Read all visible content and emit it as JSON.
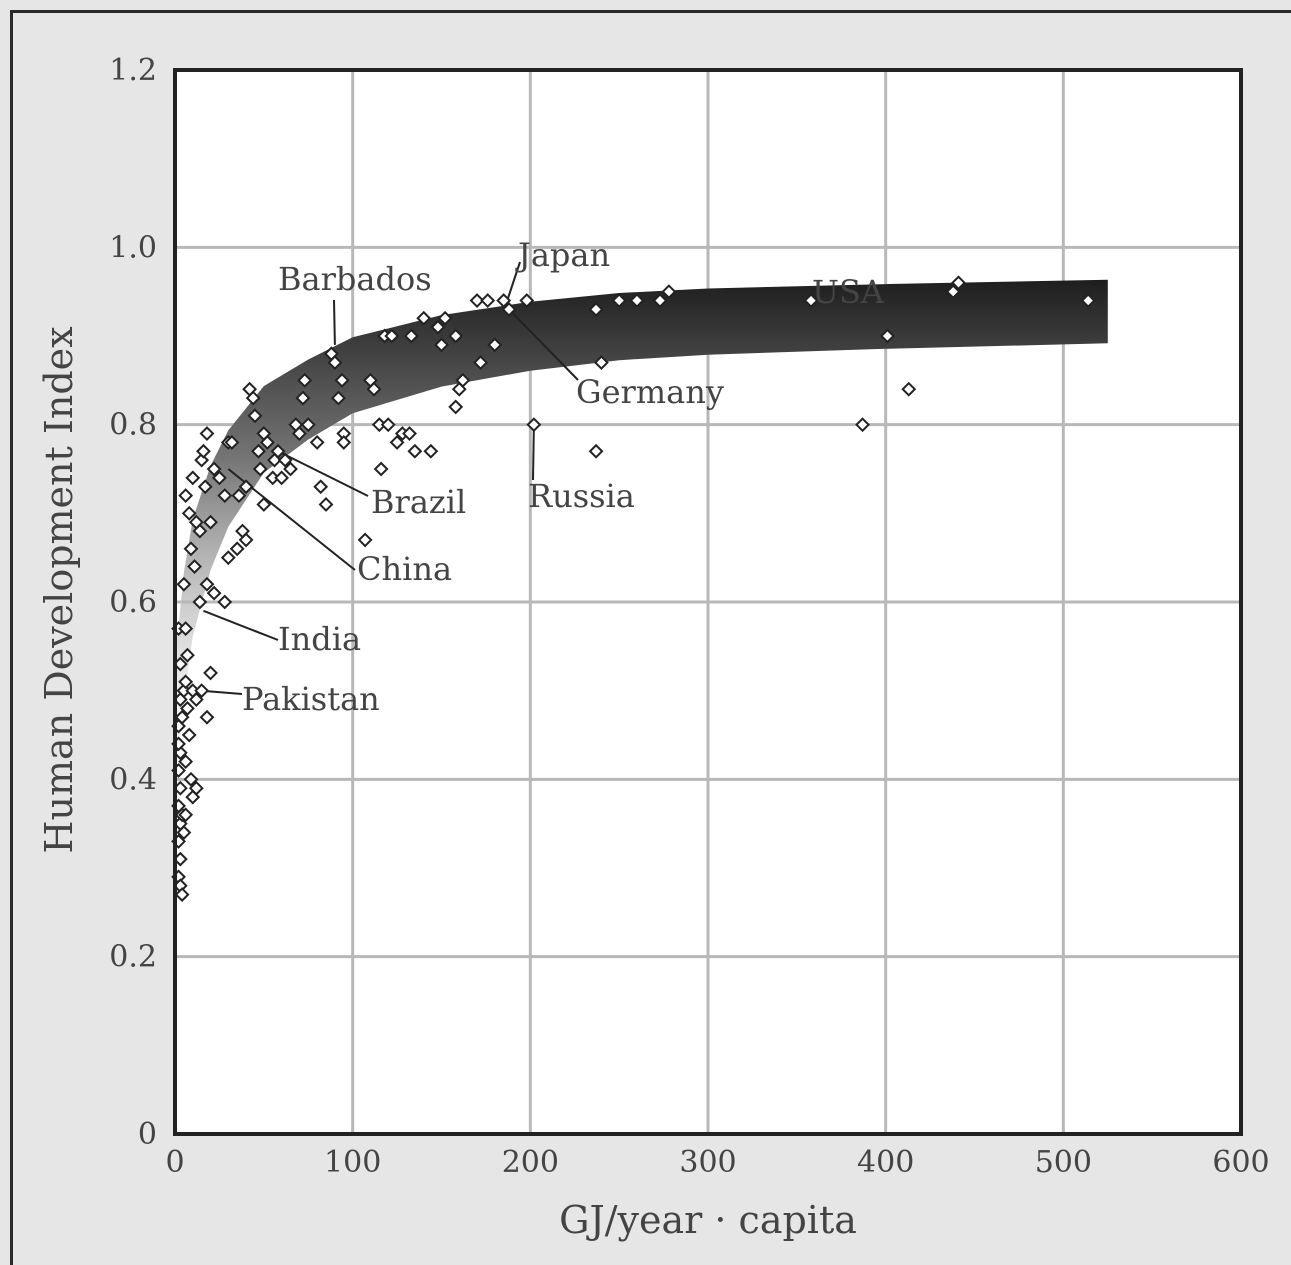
{
  "chart_data": {
    "type": "scatter",
    "title": "",
    "xlabel": "GJ/year · capita",
    "ylabel": "Human Development Index",
    "xlim": [
      0,
      600
    ],
    "ylim": [
      0,
      1.2
    ],
    "x_ticks": [
      "0",
      "100",
      "200",
      "300",
      "400",
      "500",
      "600"
    ],
    "y_ticks": [
      "0",
      "0.2",
      "0.4",
      "0.6",
      "0.8",
      "1.0",
      "1.2"
    ],
    "grid": true,
    "trend_band": {
      "description": "shaded gradient band following saturating trend",
      "x": [
        0,
        5,
        10,
        20,
        30,
        50,
        75,
        100,
        150,
        200,
        250,
        300,
        400,
        525
      ],
      "y": [
        0.52,
        0.62,
        0.68,
        0.74,
        0.78,
        0.83,
        0.86,
        0.885,
        0.91,
        0.925,
        0.935,
        0.94,
        0.945,
        0.95
      ]
    },
    "points": [
      [
        2,
        0.57
      ],
      [
        3,
        0.53
      ],
      [
        3,
        0.49
      ],
      [
        2,
        0.46
      ],
      [
        3,
        0.43
      ],
      [
        2,
        0.41
      ],
      [
        3,
        0.39
      ],
      [
        2,
        0.37
      ],
      [
        3,
        0.35
      ],
      [
        2,
        0.33
      ],
      [
        3,
        0.31
      ],
      [
        2,
        0.29
      ],
      [
        3,
        0.28
      ],
      [
        4,
        0.27
      ],
      [
        2,
        0.44
      ],
      [
        4,
        0.47
      ],
      [
        5,
        0.5
      ],
      [
        4,
        0.36
      ],
      [
        6,
        0.36
      ],
      [
        5,
        0.34
      ],
      [
        6,
        0.57
      ],
      [
        7,
        0.54
      ],
      [
        6,
        0.51
      ],
      [
        7,
        0.48
      ],
      [
        8,
        0.45
      ],
      [
        6,
        0.42
      ],
      [
        9,
        0.4
      ],
      [
        10,
        0.38
      ],
      [
        12,
        0.39
      ],
      [
        10,
        0.5
      ],
      [
        12,
        0.49
      ],
      [
        15,
        0.5
      ],
      [
        18,
        0.47
      ],
      [
        20,
        0.52
      ],
      [
        5,
        0.62
      ],
      [
        6,
        0.72
      ],
      [
        8,
        0.7
      ],
      [
        10,
        0.74
      ],
      [
        9,
        0.66
      ],
      [
        11,
        0.64
      ],
      [
        12,
        0.69
      ],
      [
        14,
        0.68
      ],
      [
        15,
        0.76
      ],
      [
        16,
        0.77
      ],
      [
        18,
        0.79
      ],
      [
        17,
        0.73
      ],
      [
        14,
        0.6
      ],
      [
        18,
        0.62
      ],
      [
        22,
        0.61
      ],
      [
        28,
        0.6
      ],
      [
        20,
        0.69
      ],
      [
        22,
        0.75
      ],
      [
        25,
        0.74
      ],
      [
        28,
        0.72
      ],
      [
        30,
        0.78
      ],
      [
        32,
        0.78
      ],
      [
        30,
        0.65
      ],
      [
        35,
        0.66
      ],
      [
        38,
        0.68
      ],
      [
        40,
        0.67
      ],
      [
        36,
        0.72
      ],
      [
        40,
        0.73
      ],
      [
        42,
        0.84
      ],
      [
        44,
        0.83
      ],
      [
        45,
        0.81
      ],
      [
        47,
        0.77
      ],
      [
        48,
        0.75
      ],
      [
        50,
        0.79
      ],
      [
        52,
        0.78
      ],
      [
        50,
        0.71
      ],
      [
        55,
        0.74
      ],
      [
        56,
        0.76
      ],
      [
        58,
        0.77
      ],
      [
        60,
        0.74
      ],
      [
        62,
        0.76
      ],
      [
        65,
        0.75
      ],
      [
        68,
        0.8
      ],
      [
        70,
        0.79
      ],
      [
        72,
        0.83
      ],
      [
        73,
        0.85
      ],
      [
        75,
        0.8
      ],
      [
        80,
        0.78
      ],
      [
        82,
        0.73
      ],
      [
        85,
        0.71
      ],
      [
        88,
        0.88
      ],
      [
        90,
        0.87
      ],
      [
        92,
        0.83
      ],
      [
        94,
        0.85
      ],
      [
        95,
        0.79
      ],
      [
        95,
        0.78
      ],
      [
        107,
        0.67
      ],
      [
        110,
        0.85
      ],
      [
        112,
        0.84
      ],
      [
        115,
        0.8
      ],
      [
        116,
        0.75
      ],
      [
        118,
        0.9
      ],
      [
        120,
        0.8
      ],
      [
        122,
        0.9
      ],
      [
        125,
        0.78
      ],
      [
        128,
        0.79
      ],
      [
        132,
        0.79
      ],
      [
        133,
        0.9
      ],
      [
        135,
        0.77
      ],
      [
        140,
        0.92
      ],
      [
        144,
        0.77
      ],
      [
        148,
        0.91
      ],
      [
        150,
        0.89
      ],
      [
        152,
        0.92
      ],
      [
        158,
        0.9
      ],
      [
        158,
        0.82
      ],
      [
        160,
        0.84
      ],
      [
        162,
        0.85
      ],
      [
        170,
        0.94
      ],
      [
        172,
        0.87
      ],
      [
        176,
        0.94
      ],
      [
        180,
        0.89
      ],
      [
        185,
        0.94
      ],
      [
        188,
        0.93
      ],
      [
        198,
        0.94
      ],
      [
        202,
        0.8
      ],
      [
        237,
        0.93
      ],
      [
        237,
        0.77
      ],
      [
        240,
        0.87
      ],
      [
        250,
        0.94
      ],
      [
        260,
        0.94
      ],
      [
        273,
        0.94
      ],
      [
        278,
        0.95
      ],
      [
        358,
        0.94
      ],
      [
        387,
        0.8
      ],
      [
        401,
        0.9
      ],
      [
        413,
        0.84
      ],
      [
        438,
        0.95
      ],
      [
        441,
        0.96
      ],
      [
        514,
        0.94
      ]
    ],
    "annotations": [
      {
        "label": "Barbados",
        "at": [
          90,
          0.89
        ]
      },
      {
        "label": "Japan",
        "at": [
          187,
          0.94
        ]
      },
      {
        "label": "Germany",
        "at": [
          188,
          0.93
        ]
      },
      {
        "label": "USA",
        "at": [
          358,
          0.94
        ]
      },
      {
        "label": "Russia",
        "at": [
          202,
          0.8
        ]
      },
      {
        "label": "Brazil",
        "at": [
          58,
          0.77
        ]
      },
      {
        "label": "China",
        "at": [
          30,
          0.75
        ]
      },
      {
        "label": "India",
        "at": [
          16,
          0.59
        ]
      },
      {
        "label": "Pakistan",
        "at": [
          14,
          0.5
        ]
      }
    ]
  }
}
